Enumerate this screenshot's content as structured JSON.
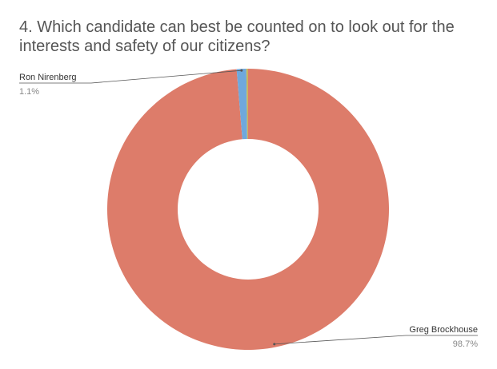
{
  "chart_data": {
    "type": "donut",
    "title": "4. Which candidate can best be counted on to look out for the interests and safety of our citizens?",
    "categories": [
      "Greg Brockhouse",
      "Ron Nirenberg",
      null
    ],
    "values": [
      98.7,
      1.1,
      0.2
    ],
    "value_labels": [
      "98.7%",
      "1.1%",
      null
    ],
    "colors": [
      "#dd7c6a",
      "#6fa8dc",
      "#c9b65d"
    ]
  }
}
